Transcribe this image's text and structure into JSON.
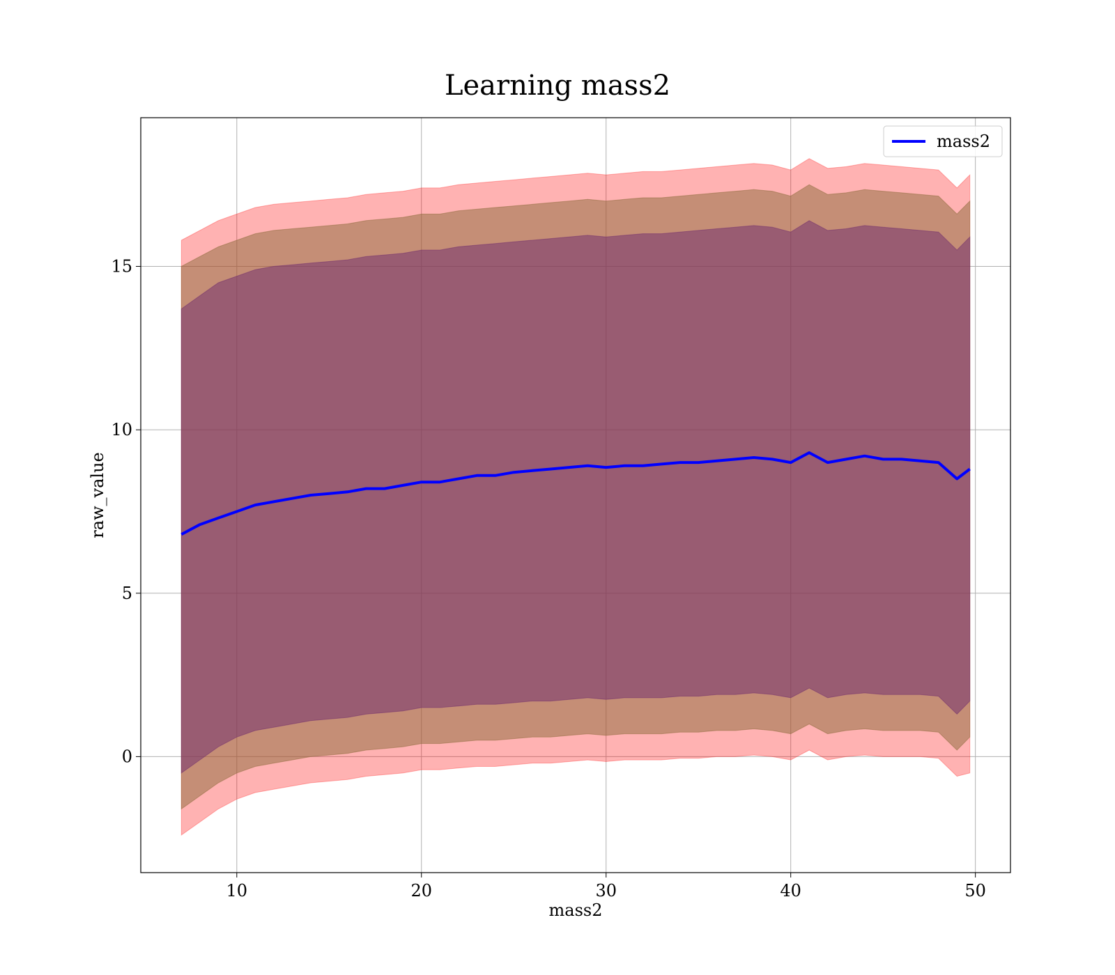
{
  "chart_data": {
    "type": "line",
    "title": "Learning mass2",
    "xlabel": "mass2",
    "ylabel": "raw_value",
    "xlim": [
      4.8,
      51.9
    ],
    "ylim": [
      -3.55,
      19.55
    ],
    "xticks": [
      10,
      20,
      30,
      40,
      50
    ],
    "yticks": [
      0,
      5,
      10,
      15
    ],
    "grid": true,
    "legend": {
      "position": "top-right",
      "entries": [
        "mass2"
      ]
    },
    "colors": {
      "line": "#0000ff",
      "band_outer": "#ff0000",
      "band_middle": "#8b6a3a",
      "band_inner": "#6e2a6e",
      "grid": "#b0b0b0",
      "axes": "#000000"
    },
    "series": [
      {
        "name": "mass2",
        "x": [
          7.0,
          8.0,
          9.0,
          10.0,
          11.0,
          12.0,
          13.0,
          14.0,
          15.0,
          16.0,
          17.0,
          18.0,
          19.0,
          20.0,
          21.0,
          22.0,
          23.0,
          24.0,
          25.0,
          26.0,
          27.0,
          28.0,
          29.0,
          30.0,
          31.0,
          32.0,
          33.0,
          34.0,
          35.0,
          36.0,
          37.0,
          38.0,
          39.0,
          40.0,
          41.0,
          42.0,
          43.0,
          44.0,
          45.0,
          46.0,
          47.0,
          48.0,
          49.0,
          49.7
        ],
        "y": [
          6.8,
          7.1,
          7.3,
          7.5,
          7.7,
          7.8,
          7.9,
          8.0,
          8.05,
          8.1,
          8.2,
          8.2,
          8.3,
          8.4,
          8.4,
          8.5,
          8.6,
          8.6,
          8.7,
          8.75,
          8.8,
          8.85,
          8.9,
          8.85,
          8.9,
          8.9,
          8.95,
          9.0,
          9.0,
          9.05,
          9.1,
          9.15,
          9.1,
          9.0,
          9.3,
          9.0,
          9.1,
          9.2,
          9.1,
          9.1,
          9.05,
          9.0,
          8.5,
          8.8
        ],
        "bands": [
          {
            "name": "outer",
            "lower": [
              -2.4,
              -2.0,
              -1.6,
              -1.3,
              -1.1,
              -1.0,
              -0.9,
              -0.8,
              -0.75,
              -0.7,
              -0.6,
              -0.55,
              -0.5,
              -0.4,
              -0.4,
              -0.35,
              -0.3,
              -0.3,
              -0.25,
              -0.2,
              -0.2,
              -0.15,
              -0.1,
              -0.15,
              -0.1,
              -0.1,
              -0.1,
              -0.05,
              -0.05,
              0.0,
              0.0,
              0.05,
              0.0,
              -0.1,
              0.2,
              -0.1,
              0.0,
              0.05,
              0.0,
              0.0,
              0.0,
              -0.05,
              -0.6,
              -0.5
            ],
            "upper": [
              15.8,
              16.1,
              16.4,
              16.6,
              16.8,
              16.9,
              16.95,
              17.0,
              17.05,
              17.1,
              17.2,
              17.25,
              17.3,
              17.4,
              17.4,
              17.5,
              17.55,
              17.6,
              17.65,
              17.7,
              17.75,
              17.8,
              17.85,
              17.8,
              17.85,
              17.9,
              17.9,
              17.95,
              18.0,
              18.05,
              18.1,
              18.15,
              18.1,
              17.95,
              18.3,
              18.0,
              18.05,
              18.15,
              18.1,
              18.05,
              18.0,
              17.95,
              17.4,
              17.8
            ]
          },
          {
            "name": "middle",
            "lower": [
              -1.6,
              -1.2,
              -0.8,
              -0.5,
              -0.3,
              -0.2,
              -0.1,
              0.0,
              0.05,
              0.1,
              0.2,
              0.25,
              0.3,
              0.4,
              0.4,
              0.45,
              0.5,
              0.5,
              0.55,
              0.6,
              0.6,
              0.65,
              0.7,
              0.65,
              0.7,
              0.7,
              0.7,
              0.75,
              0.75,
              0.8,
              0.8,
              0.85,
              0.8,
              0.7,
              1.0,
              0.7,
              0.8,
              0.85,
              0.8,
              0.8,
              0.8,
              0.75,
              0.2,
              0.6
            ],
            "upper": [
              15.0,
              15.3,
              15.6,
              15.8,
              16.0,
              16.1,
              16.15,
              16.2,
              16.25,
              16.3,
              16.4,
              16.45,
              16.5,
              16.6,
              16.6,
              16.7,
              16.75,
              16.8,
              16.85,
              16.9,
              16.95,
              17.0,
              17.05,
              17.0,
              17.05,
              17.1,
              17.1,
              17.15,
              17.2,
              17.25,
              17.3,
              17.35,
              17.3,
              17.15,
              17.5,
              17.2,
              17.25,
              17.35,
              17.3,
              17.25,
              17.2,
              17.15,
              16.6,
              17.0
            ]
          },
          {
            "name": "inner",
            "lower": [
              -0.5,
              -0.1,
              0.3,
              0.6,
              0.8,
              0.9,
              1.0,
              1.1,
              1.15,
              1.2,
              1.3,
              1.35,
              1.4,
              1.5,
              1.5,
              1.55,
              1.6,
              1.6,
              1.65,
              1.7,
              1.7,
              1.75,
              1.8,
              1.75,
              1.8,
              1.8,
              1.8,
              1.85,
              1.85,
              1.9,
              1.9,
              1.95,
              1.9,
              1.8,
              2.1,
              1.8,
              1.9,
              1.95,
              1.9,
              1.9,
              1.9,
              1.85,
              1.3,
              1.7
            ],
            "upper": [
              13.7,
              14.1,
              14.5,
              14.7,
              14.9,
              15.0,
              15.05,
              15.1,
              15.15,
              15.2,
              15.3,
              15.35,
              15.4,
              15.5,
              15.5,
              15.6,
              15.65,
              15.7,
              15.75,
              15.8,
              15.85,
              15.9,
              15.95,
              15.9,
              15.95,
              16.0,
              16.0,
              16.05,
              16.1,
              16.15,
              16.2,
              16.25,
              16.2,
              16.05,
              16.4,
              16.1,
              16.15,
              16.25,
              16.2,
              16.15,
              16.1,
              16.05,
              15.5,
              15.9
            ]
          }
        ]
      }
    ]
  }
}
